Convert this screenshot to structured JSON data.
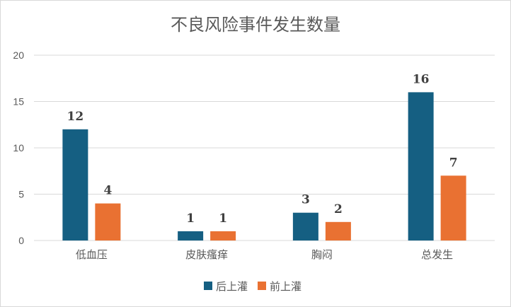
{
  "chart_data": {
    "type": "bar",
    "title": "不良风险事件发生数量",
    "categories": [
      "低血压",
      "皮肤瘙痒",
      "胸闷",
      "总发生"
    ],
    "series": [
      {
        "name": "后上灌",
        "values": [
          12,
          1,
          3,
          16
        ],
        "color": "#155F82"
      },
      {
        "name": "前上灌",
        "values": [
          4,
          1,
          2,
          7
        ],
        "color": "#E97132"
      }
    ],
    "ylim": [
      0,
      20
    ],
    "yticks": [
      0,
      5,
      10,
      15,
      20
    ],
    "grid": true,
    "data_labels": true,
    "legend": "bottom"
  }
}
